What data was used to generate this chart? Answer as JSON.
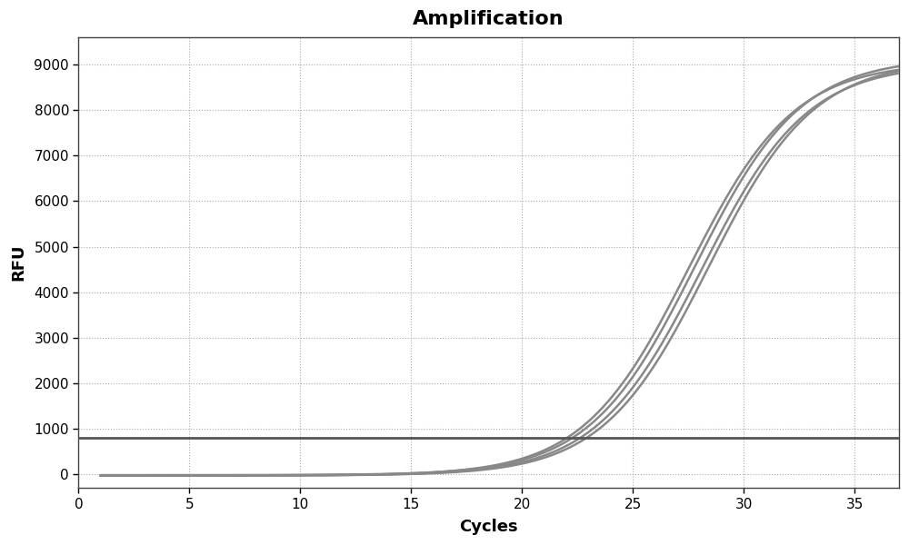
{
  "title": "Amplification",
  "xlabel": "Cycles",
  "ylabel": "RFU",
  "xlim": [
    0,
    37
  ],
  "ylim": [
    -300,
    9600
  ],
  "xticks": [
    0,
    5,
    10,
    15,
    20,
    25,
    30,
    35
  ],
  "yticks": [
    0,
    1000,
    2000,
    3000,
    4000,
    5000,
    6000,
    7000,
    8000,
    9000
  ],
  "threshold_y": 800,
  "threshold_color": "#555555",
  "threshold_lw": 2.0,
  "curve_color": "#888888",
  "curve_lw": 1.8,
  "grid_color": "#aaaaaa",
  "grid_style": "dotted",
  "background_color": "#ffffff",
  "title_fontsize": 16,
  "axis_label_fontsize": 13,
  "tick_fontsize": 11,
  "num_curves": 4,
  "sigmoid_midpoints": [
    27.5,
    27.8,
    28.1,
    28.4
  ],
  "sigmoid_steepness": [
    0.42,
    0.42,
    0.42,
    0.42
  ],
  "sigmoid_max": [
    9050,
    9150,
    9020,
    9100
  ],
  "sigmoid_baseline": [
    -30,
    -20,
    -25,
    -28
  ]
}
